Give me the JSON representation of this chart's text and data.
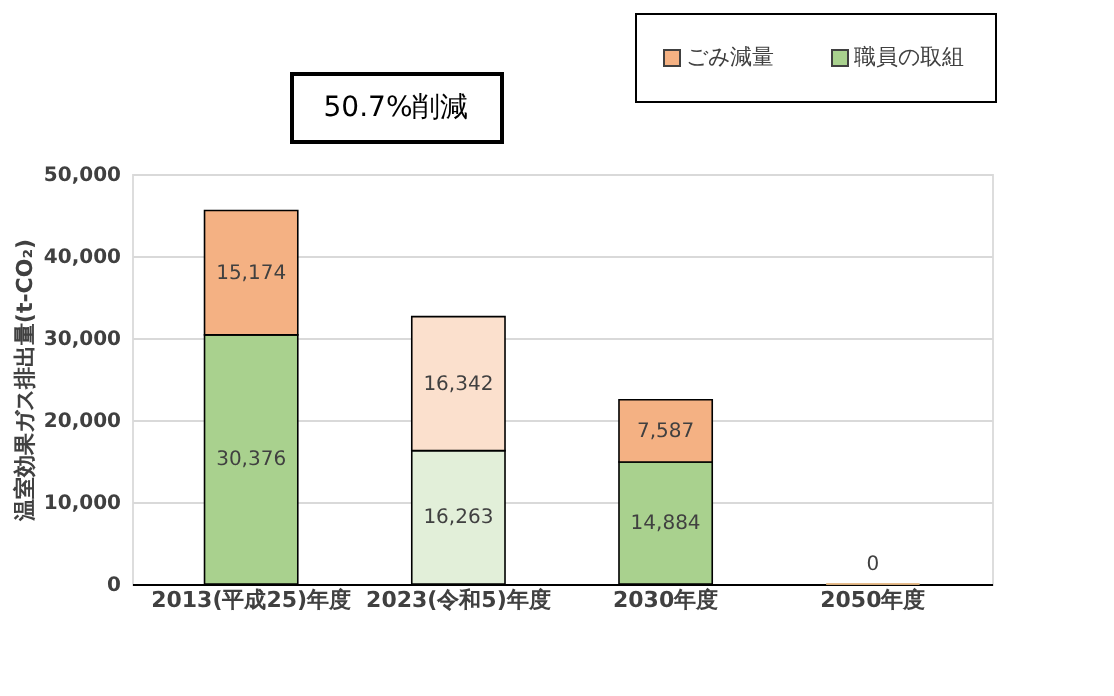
{
  "chart_data": {
    "type": "bar",
    "stacked": true,
    "ylabel": "温室効果ガス排出量(t-CO₂)",
    "categories": [
      "2013(平成25)年度",
      "2023(令和5)年度",
      "2030年度",
      "2050年度"
    ],
    "series": [
      {
        "name": "職員の取組",
        "color": "#a9d18e",
        "colors": [
          "#a9d18e",
          "#e2efd9",
          "#a9d18e",
          "#a9d18e"
        ],
        "values": [
          30376,
          16263,
          14884,
          0
        ],
        "value_labels": [
          "30,376",
          "16,263",
          "14,884",
          "0"
        ]
      },
      {
        "name": "ごみ減量",
        "color": "#f4b183",
        "colors": [
          "#f4b183",
          "#fbe0cd",
          "#f4b183",
          "#f4b183"
        ],
        "values": [
          15174,
          16342,
          7587,
          0
        ],
        "value_labels": [
          "15,174",
          "16,342",
          "7,587",
          null
        ]
      }
    ],
    "ylim": [
      0,
      50000
    ],
    "yticks": [
      0,
      {
        "value": 10000,
        "label": "10,000"
      },
      {
        "value": 20000,
        "label": "20,000"
      },
      {
        "value": 30000,
        "label": "30,000"
      },
      {
        "value": 40000,
        "label": "40,000"
      },
      {
        "value": 50000,
        "label": "50,000"
      }
    ],
    "grid": "y",
    "legend": "top right",
    "annotations": [
      "50.7%削減"
    ]
  }
}
